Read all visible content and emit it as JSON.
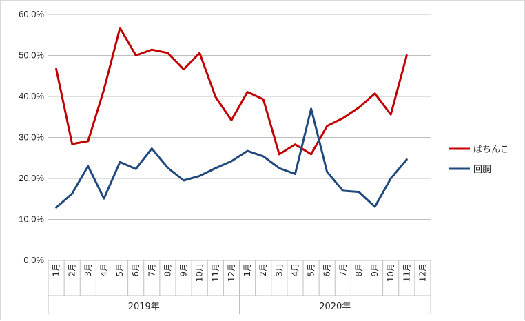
{
  "chart_data": {
    "type": "line",
    "y_ticks": [
      "0.0%",
      "10.0%",
      "20.0%",
      "30.0%",
      "40.0%",
      "50.0%",
      "60.0%"
    ],
    "ylim": [
      0,
      60
    ],
    "grid": true,
    "legend_position": "right",
    "categories": [
      "1月",
      "2月",
      "3月",
      "4月",
      "5月",
      "6月",
      "7月",
      "8月",
      "9月",
      "10月",
      "11月",
      "12月",
      "1月",
      "2月",
      "3月",
      "4月",
      "5月",
      "6月",
      "7月",
      "8月",
      "9月",
      "10月",
      "11月",
      "12月"
    ],
    "groups": [
      {
        "label": "2019年",
        "count": 12
      },
      {
        "label": "2020年",
        "count": 12
      }
    ],
    "series": [
      {
        "name": "ぱちんこ",
        "color": "#c00000",
        "values": [
          46.7,
          28.4,
          29.1,
          41.7,
          56.7,
          50.0,
          51.4,
          50.6,
          46.6,
          50.6,
          39.9,
          34.2,
          41.1,
          39.3,
          25.9,
          28.3,
          25.9,
          32.8,
          34.7,
          37.3,
          40.7,
          35.6,
          50.0,
          null
        ]
      },
      {
        "name": "回胴",
        "color": "#1f497d",
        "values": [
          12.9,
          16.3,
          23.0,
          15.1,
          24.0,
          22.3,
          27.3,
          22.6,
          19.5,
          20.6,
          22.5,
          24.2,
          26.7,
          25.4,
          22.5,
          21.1,
          37.0,
          21.6,
          17.0,
          16.7,
          13.1,
          20.0,
          24.6,
          null
        ]
      }
    ]
  }
}
